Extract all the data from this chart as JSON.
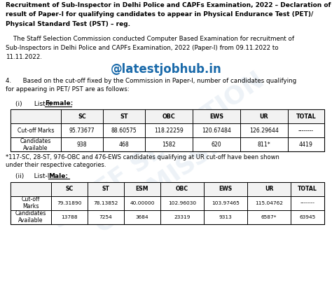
{
  "title": "Recruitment of Sub-Inspector in Delhi Police and CAPFs Examination, 2022 – Declaration of\nresult of Paper-I for qualifying candidates to appear in Physical Endurance Test (PET)/\nPhysical Standard Test (PST) – reg.",
  "para_line1": "    The Staff Selection Commission conducted Computer Based Examination for recruitment of",
  "para_line2": "Sub-Inspectors in Delhi Police and CAPFs Examination, 2022 (Paper-I) from 09.11.2022 to",
  "para_line3": "11.11.2022.",
  "watermark": "@latestjobhub.in",
  "point4_line1": "4.      Based on the cut-off fixed by the Commission in Paper-I, number of candidates qualifying",
  "point4_line2": "for appearing in PET/ PST are as follows:",
  "list1_prefix": "(i)      List-I:  ",
  "list1_suffix": "Female:",
  "female_headers": [
    "",
    "SC",
    "ST",
    "OBC",
    "EWS",
    "UR",
    "TOTAL"
  ],
  "female_row1_label": "Cut-off Marks",
  "female_row1": [
    "95.73677",
    "88.60575",
    "118.22259",
    "120.67484",
    "126.29644",
    "--------"
  ],
  "female_row2_label": "Candidates\nAvailable",
  "female_row2": [
    "938",
    "468",
    "1582",
    "620",
    "811*",
    "4419"
  ],
  "footnote_line1": "*117-SC, 28-ST, 976-OBC and 476-EWS candidates qualifying at UR cut-off have been shown",
  "footnote_line2": "under their respective categories.",
  "list2_prefix": "(ii)     List-II:  ",
  "list2_suffix": "Male:",
  "male_headers": [
    "",
    "SC",
    "ST",
    "ESM",
    "OBC",
    "EWS",
    "UR",
    "TOTAL"
  ],
  "male_row1_label": "Cut-off\nMarks",
  "male_row1": [
    "79.31890",
    "78.13852",
    "40.00000",
    "102.96030",
    "103.97465",
    "115.04762",
    "--------"
  ],
  "male_row2_label": "Candidates\nAvailable",
  "male_row2": [
    "13788",
    "7254",
    "3684",
    "23319",
    "9313",
    "6587*",
    "63945"
  ],
  "bg_color": "#ffffff",
  "text_color": "#000000",
  "watermark_color": "#1a6aaa",
  "table_bg": "#ffffff",
  "header_bg": "#f2f2f2"
}
